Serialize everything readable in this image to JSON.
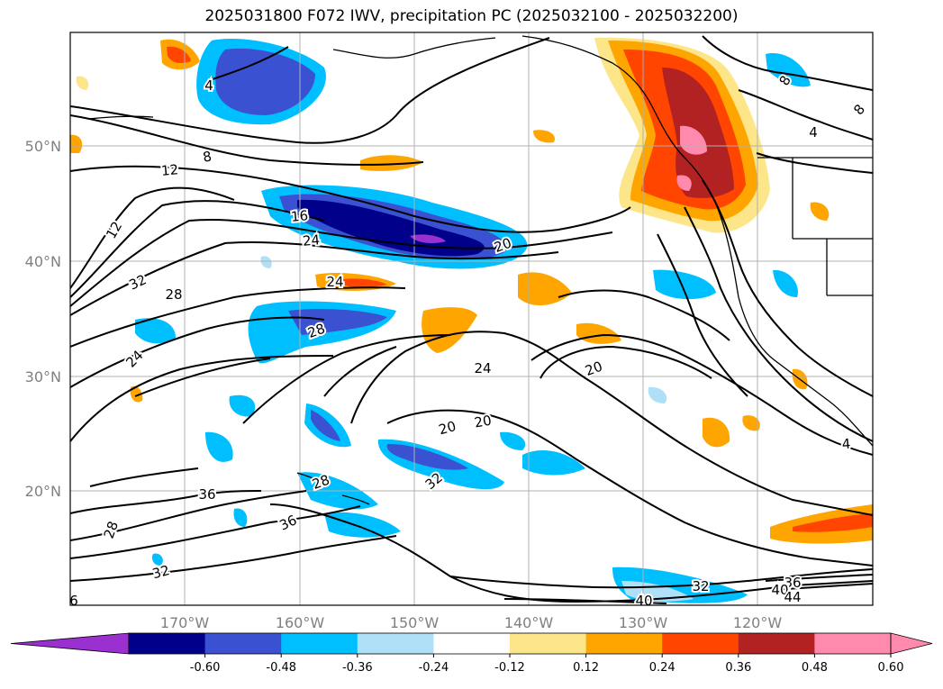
{
  "title": "2025031800 F072 IWV, precipitation PC (2025032100 - 2025032200)",
  "axes": {
    "lat_ticks": [
      "50°N",
      "40°N",
      "30°N",
      "20°N"
    ],
    "lon_ticks": [
      "170°W",
      "160°W",
      "150°W",
      "140°W",
      "130°W",
      "120°W"
    ]
  },
  "colorbar": {
    "ticks": [
      "-0.60",
      "-0.48",
      "-0.36",
      "-0.24",
      "-0.12",
      "0.12",
      "0.24",
      "0.36",
      "0.48",
      "0.60"
    ],
    "colors": [
      "#9b30d0",
      "#00008b",
      "#3a52d1",
      "#00bfff",
      "#b0e0f8",
      "#ffffff",
      "#fde68a",
      "#ffa500",
      "#ff4500",
      "#b22222",
      "#ff8aad",
      "#ff8aad"
    ]
  },
  "contour_labels": [
    "8",
    "12",
    "12",
    "16",
    "24",
    "20",
    "24",
    "32",
    "28",
    "28",
    "24",
    "20",
    "24",
    "20",
    "20",
    "32",
    "36",
    "28",
    "36",
    "28",
    "32",
    "32",
    "36",
    "40",
    "44",
    "40",
    "4",
    "4",
    "8",
    "8",
    "4",
    "6"
  ]
}
